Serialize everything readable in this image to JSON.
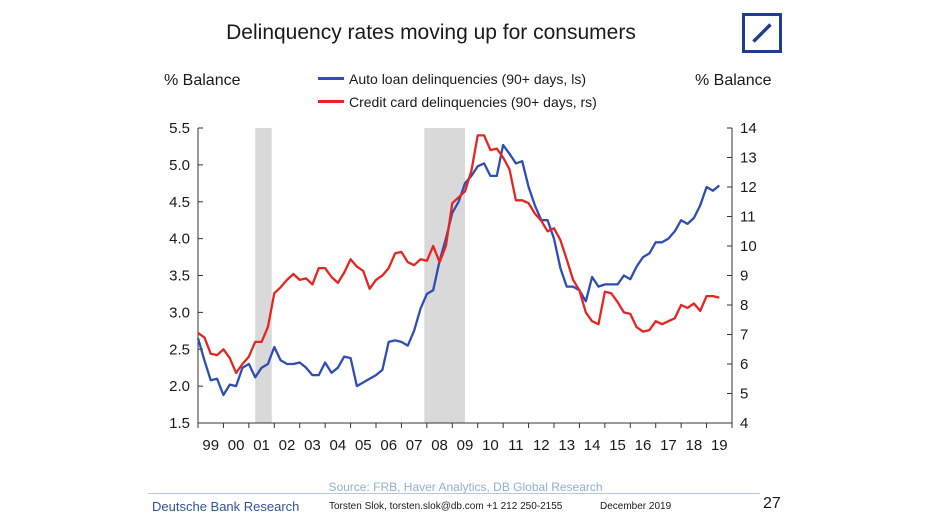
{
  "header": {
    "title": "Delinquency rates moving up for consumers",
    "left_unit": "% Balance",
    "right_unit": "% Balance"
  },
  "footer": {
    "source": "Source: FRB, Haver Analytics, DB Global Research",
    "brand": "Deutsche Bank Research",
    "contact": "Torsten Slok, torsten.slok@db.com +1 212 250-2155",
    "date": "December 2019",
    "page": "27"
  },
  "logo_color": "#1f3c8f",
  "chart_data": {
    "type": "line",
    "title": "Delinquency rates moving up for consumers",
    "x_tick_labels": [
      "99",
      "00",
      "01",
      "02",
      "03",
      "04",
      "05",
      "06",
      "07",
      "08",
      "09",
      "10",
      "11",
      "12",
      "13",
      "14",
      "15",
      "16",
      "17",
      "18",
      "19"
    ],
    "xlim": [
      1999,
      2020
    ],
    "y_left": {
      "label": "% Balance",
      "ticks": [
        "1.5",
        "2.0",
        "2.5",
        "3.0",
        "3.5",
        "4.0",
        "4.5",
        "5.0",
        "5.5"
      ],
      "lim": [
        1.5,
        5.5
      ]
    },
    "y_right": {
      "label": "% Balance",
      "ticks": [
        "4",
        "5",
        "6",
        "7",
        "8",
        "9",
        "10",
        "11",
        "12",
        "13",
        "14"
      ],
      "lim": [
        4,
        14
      ]
    },
    "recessions": [
      [
        2001.25,
        2001.9
      ],
      [
        2007.9,
        2009.5
      ]
    ],
    "recession_color": "#d9d9d9",
    "grid": false,
    "legend_position": "top-center",
    "series": [
      {
        "name": "Auto loan delinquencies (90+ days, ls)",
        "axis": "left",
        "color": "#2f4db3",
        "points": [
          [
            1999.0,
            2.65
          ],
          [
            1999.25,
            2.35
          ],
          [
            1999.5,
            2.08
          ],
          [
            1999.75,
            2.1
          ],
          [
            2000.0,
            1.88
          ],
          [
            2000.25,
            2.02
          ],
          [
            2000.5,
            2.0
          ],
          [
            2000.75,
            2.25
          ],
          [
            2001.0,
            2.3
          ],
          [
            2001.25,
            2.12
          ],
          [
            2001.5,
            2.25
          ],
          [
            2001.75,
            2.3
          ],
          [
            2002.0,
            2.53
          ],
          [
            2002.25,
            2.35
          ],
          [
            2002.5,
            2.3
          ],
          [
            2002.75,
            2.3
          ],
          [
            2003.0,
            2.32
          ],
          [
            2003.25,
            2.25
          ],
          [
            2003.5,
            2.15
          ],
          [
            2003.75,
            2.15
          ],
          [
            2004.0,
            2.32
          ],
          [
            2004.25,
            2.18
          ],
          [
            2004.5,
            2.25
          ],
          [
            2004.75,
            2.4
          ],
          [
            2005.0,
            2.38
          ],
          [
            2005.25,
            2.0
          ],
          [
            2005.5,
            2.05
          ],
          [
            2005.75,
            2.1
          ],
          [
            2006.0,
            2.15
          ],
          [
            2006.25,
            2.22
          ],
          [
            2006.5,
            2.6
          ],
          [
            2006.75,
            2.62
          ],
          [
            2007.0,
            2.6
          ],
          [
            2007.25,
            2.55
          ],
          [
            2007.5,
            2.75
          ],
          [
            2007.75,
            3.05
          ],
          [
            2008.0,
            3.25
          ],
          [
            2008.25,
            3.3
          ],
          [
            2008.5,
            3.7
          ],
          [
            2008.75,
            4.0
          ],
          [
            2009.0,
            4.35
          ],
          [
            2009.25,
            4.5
          ],
          [
            2009.5,
            4.75
          ],
          [
            2009.75,
            4.85
          ],
          [
            2010.0,
            4.98
          ],
          [
            2010.25,
            5.02
          ],
          [
            2010.5,
            4.85
          ],
          [
            2010.75,
            4.85
          ],
          [
            2011.0,
            5.27
          ],
          [
            2011.25,
            5.15
          ],
          [
            2011.5,
            5.02
          ],
          [
            2011.75,
            5.05
          ],
          [
            2012.0,
            4.7
          ],
          [
            2012.25,
            4.45
          ],
          [
            2012.5,
            4.25
          ],
          [
            2012.75,
            4.25
          ],
          [
            2013.0,
            4.0
          ],
          [
            2013.25,
            3.6
          ],
          [
            2013.5,
            3.35
          ],
          [
            2013.75,
            3.35
          ],
          [
            2014.0,
            3.3
          ],
          [
            2014.25,
            3.15
          ],
          [
            2014.5,
            3.48
          ],
          [
            2014.75,
            3.35
          ],
          [
            2015.0,
            3.38
          ],
          [
            2015.25,
            3.38
          ],
          [
            2015.5,
            3.38
          ],
          [
            2015.75,
            3.5
          ],
          [
            2016.0,
            3.45
          ],
          [
            2016.25,
            3.62
          ],
          [
            2016.5,
            3.75
          ],
          [
            2016.75,
            3.8
          ],
          [
            2017.0,
            3.95
          ],
          [
            2017.25,
            3.95
          ],
          [
            2017.5,
            4.0
          ],
          [
            2017.75,
            4.1
          ],
          [
            2018.0,
            4.25
          ],
          [
            2018.25,
            4.2
          ],
          [
            2018.5,
            4.28
          ],
          [
            2018.75,
            4.45
          ],
          [
            2019.0,
            4.7
          ],
          [
            2019.25,
            4.65
          ],
          [
            2019.5,
            4.72
          ]
        ]
      },
      {
        "name": "Credit card delinquencies (90+ days, rs)",
        "axis": "right",
        "color": "#e52521",
        "points": [
          [
            1999.0,
            7.05
          ],
          [
            1999.25,
            6.9
          ],
          [
            1999.5,
            6.35
          ],
          [
            1999.75,
            6.3
          ],
          [
            2000.0,
            6.5
          ],
          [
            2000.25,
            6.2
          ],
          [
            2000.5,
            5.7
          ],
          [
            2000.75,
            6.0
          ],
          [
            2001.0,
            6.25
          ],
          [
            2001.25,
            6.75
          ],
          [
            2001.5,
            6.75
          ],
          [
            2001.75,
            7.25
          ],
          [
            2002.0,
            8.4
          ],
          [
            2002.25,
            8.6
          ],
          [
            2002.5,
            8.85
          ],
          [
            2002.75,
            9.05
          ],
          [
            2003.0,
            8.85
          ],
          [
            2003.25,
            8.9
          ],
          [
            2003.5,
            8.7
          ],
          [
            2003.75,
            9.25
          ],
          [
            2004.0,
            9.25
          ],
          [
            2004.25,
            8.95
          ],
          [
            2004.5,
            8.75
          ],
          [
            2004.75,
            9.1
          ],
          [
            2005.0,
            9.55
          ],
          [
            2005.25,
            9.3
          ],
          [
            2005.5,
            9.15
          ],
          [
            2005.75,
            8.55
          ],
          [
            2006.0,
            8.85
          ],
          [
            2006.25,
            9.0
          ],
          [
            2006.5,
            9.25
          ],
          [
            2006.75,
            9.75
          ],
          [
            2007.0,
            9.8
          ],
          [
            2007.25,
            9.45
          ],
          [
            2007.5,
            9.35
          ],
          [
            2007.75,
            9.55
          ],
          [
            2008.0,
            9.5
          ],
          [
            2008.25,
            10.0
          ],
          [
            2008.5,
            9.45
          ],
          [
            2008.75,
            10.0
          ],
          [
            2009.0,
            11.45
          ],
          [
            2009.25,
            11.65
          ],
          [
            2009.5,
            11.85
          ],
          [
            2009.75,
            12.55
          ],
          [
            2010.0,
            13.75
          ],
          [
            2010.25,
            13.75
          ],
          [
            2010.5,
            13.25
          ],
          [
            2010.75,
            13.3
          ],
          [
            2011.0,
            13.0
          ],
          [
            2011.25,
            12.6
          ],
          [
            2011.5,
            11.55
          ],
          [
            2011.75,
            11.55
          ],
          [
            2012.0,
            11.45
          ],
          [
            2012.25,
            11.1
          ],
          [
            2012.5,
            10.85
          ],
          [
            2012.75,
            10.5
          ],
          [
            2013.0,
            10.6
          ],
          [
            2013.25,
            10.2
          ],
          [
            2013.5,
            9.55
          ],
          [
            2013.75,
            8.85
          ],
          [
            2014.0,
            8.5
          ],
          [
            2014.25,
            7.75
          ],
          [
            2014.5,
            7.45
          ],
          [
            2014.75,
            7.35
          ],
          [
            2015.0,
            8.45
          ],
          [
            2015.25,
            8.4
          ],
          [
            2015.5,
            8.1
          ],
          [
            2015.75,
            7.75
          ],
          [
            2016.0,
            7.7
          ],
          [
            2016.25,
            7.25
          ],
          [
            2016.5,
            7.1
          ],
          [
            2016.75,
            7.15
          ],
          [
            2017.0,
            7.45
          ],
          [
            2017.25,
            7.35
          ],
          [
            2017.5,
            7.45
          ],
          [
            2017.75,
            7.55
          ],
          [
            2018.0,
            8.0
          ],
          [
            2018.25,
            7.9
          ],
          [
            2018.5,
            8.05
          ],
          [
            2018.75,
            7.8
          ],
          [
            2019.0,
            8.3
          ],
          [
            2019.25,
            8.3
          ],
          [
            2019.5,
            8.25
          ]
        ]
      }
    ]
  }
}
